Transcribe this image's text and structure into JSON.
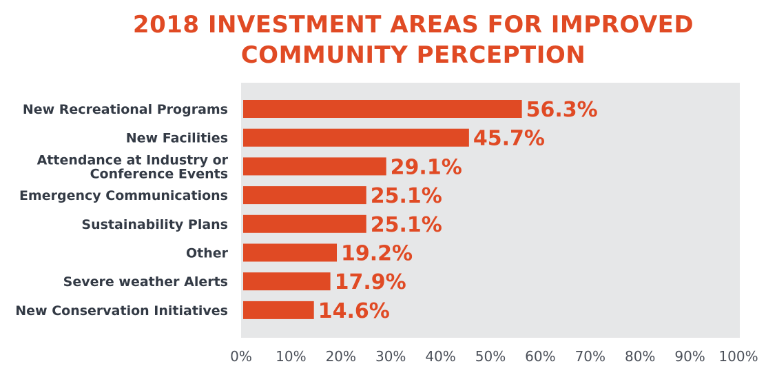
{
  "title": {
    "line1": "2018 INVESTMENT AREAS FOR IMPROVED",
    "line2": "COMMUNITY PERCEPTION"
  },
  "colors": {
    "accent": "#e04a24",
    "plot_background": "#e6e7e8",
    "category_text": "#333a45",
    "tick_text": "#4a4f58"
  },
  "chart_data": {
    "type": "bar",
    "orientation": "horizontal",
    "title": "2018 INVESTMENT AREAS FOR IMPROVED COMMUNITY PERCEPTION",
    "categories": [
      [
        "New Recreational Programs"
      ],
      [
        "New Facilities"
      ],
      [
        "Attendance at Industry or",
        "Conference Events"
      ],
      [
        "Emergency Communications"
      ],
      [
        "Sustainability Plans"
      ],
      [
        "Other"
      ],
      [
        "Severe weather Alerts"
      ],
      [
        "New Conservation Initiatives"
      ]
    ],
    "values": [
      56.3,
      45.7,
      29.1,
      25.1,
      25.1,
      19.2,
      17.9,
      14.6
    ],
    "value_labels": [
      "56.3%",
      "45.7%",
      "29.1%",
      "25.1%",
      "25.1%",
      "19.2%",
      "17.9%",
      "14.6%"
    ],
    "xlim": [
      0,
      100
    ],
    "xticks": [
      0,
      10,
      20,
      30,
      40,
      50,
      60,
      70,
      80,
      90,
      100
    ],
    "xtick_labels": [
      "0%",
      "10%",
      "20%",
      "30%",
      "40%",
      "50%",
      "60%",
      "70%",
      "80%",
      "90%",
      "100%"
    ],
    "grid": false,
    "legend": "none"
  }
}
